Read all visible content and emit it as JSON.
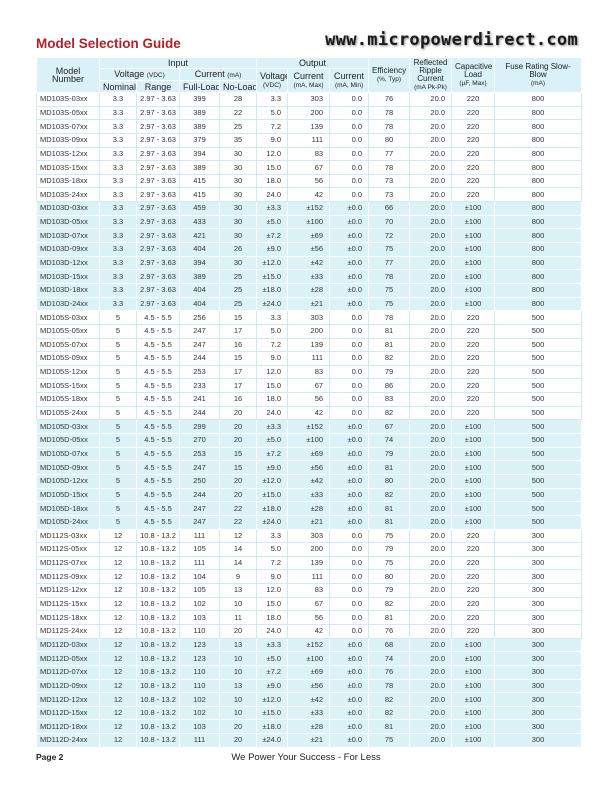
{
  "title": "Model Selection Guide",
  "url": "www.micropowerdirect.com",
  "headers": {
    "model": "Model Number",
    "input": "Input",
    "output": "Output",
    "voltage": "Voltage",
    "voltage_unit": "(VDC)",
    "current": "Current",
    "current_unit": "(mA)",
    "nominal": "Nominal",
    "range": "Range",
    "full_load": "Full-Load",
    "no_load": "No-Load",
    "out_voltage": "Voltage",
    "out_voltage_unit": "(VDC)",
    "out_current_max": "Current",
    "out_current_max_unit": "(mA, Max)",
    "out_current_min": "Current",
    "out_current_min_unit": "(mA, Min)",
    "efficiency": "Efficiency",
    "efficiency_unit": "(%, Typ)",
    "ripple": "Reflected Ripple Current",
    "ripple_unit": "(mA Pk-Pk)",
    "cap_load": "Capacitive Load",
    "cap_load_unit": "(µF, Max)",
    "fuse": "Fuse Rating Slow-Blow",
    "fuse_unit": "(mA)"
  },
  "rows": [
    [
      "MD103S-03xx",
      "3.3",
      "2.97 - 3.63",
      "399",
      "28",
      "3.3",
      "303",
      "0.0",
      "76",
      "20.0",
      "220",
      "800"
    ],
    [
      "MD103S-05xx",
      "3.3",
      "2.97 - 3.63",
      "389",
      "22",
      "5.0",
      "200",
      "0.0",
      "78",
      "20.0",
      "220",
      "800"
    ],
    [
      "MD103S-07xx",
      "3.3",
      "2.97 - 3.63",
      "389",
      "25",
      "7.2",
      "139",
      "0.0",
      "78",
      "20.0",
      "220",
      "800"
    ],
    [
      "MD103S-09xx",
      "3.3",
      "2.97 - 3.63",
      "379",
      "35",
      "9.0",
      "111",
      "0.0",
      "80",
      "20.0",
      "220",
      "800"
    ],
    [
      "MD103S-12xx",
      "3.3",
      "2.97 - 3.63",
      "394",
      "30",
      "12.0",
      "83",
      "0.0",
      "77",
      "20.0",
      "220",
      "800"
    ],
    [
      "MD103S-15xx",
      "3.3",
      "2.97 - 3.63",
      "389",
      "30",
      "15.0",
      "67",
      "0.0",
      "78",
      "20.0",
      "220",
      "800"
    ],
    [
      "MD103S-18xx",
      "3.3",
      "2.97 - 3.63",
      "415",
      "30",
      "18.0",
      "56",
      "0.0",
      "73",
      "20.0",
      "220",
      "800"
    ],
    [
      "MD103S-24xx",
      "3.3",
      "2.97 - 3.63",
      "415",
      "30",
      "24.0",
      "42",
      "0.0",
      "73",
      "20.0",
      "220",
      "800"
    ],
    [
      "MD103D-03xx",
      "3.3",
      "2.97 - 3.63",
      "459",
      "30",
      "±3.3",
      "±152",
      "±0.0",
      "66",
      "20.0",
      "±100",
      "800"
    ],
    [
      "MD103D-05xx",
      "3.3",
      "2.97 - 3.63",
      "433",
      "30",
      "±5.0",
      "±100",
      "±0.0",
      "70",
      "20.0",
      "±100",
      "800"
    ],
    [
      "MD103D-07xx",
      "3.3",
      "2.97 - 3.63",
      "421",
      "30",
      "±7.2",
      "±69",
      "±0.0",
      "72",
      "20.0",
      "±100",
      "800"
    ],
    [
      "MD103D-09xx",
      "3.3",
      "2.97 - 3.63",
      "404",
      "26",
      "±9.0",
      "±56",
      "±0.0",
      "75",
      "20.0",
      "±100",
      "800"
    ],
    [
      "MD103D-12xx",
      "3.3",
      "2.97 - 3.63",
      "394",
      "30",
      "±12.0",
      "±42",
      "±0.0",
      "77",
      "20.0",
      "±100",
      "800"
    ],
    [
      "MD103D-15xx",
      "3.3",
      "2.97 - 3.63",
      "389",
      "25",
      "±15.0",
      "±33",
      "±0.0",
      "78",
      "20.0",
      "±100",
      "800"
    ],
    [
      "MD103D-18xx",
      "3.3",
      "2.97 - 3.63",
      "404",
      "25",
      "±18.0",
      "±28",
      "±0.0",
      "75",
      "20.0",
      "±100",
      "800"
    ],
    [
      "MD103D-24xx",
      "3.3",
      "2.97 - 3.63",
      "404",
      "25",
      "±24.0",
      "±21",
      "±0.0",
      "75",
      "20.0",
      "±100",
      "800"
    ],
    [
      "MD105S-03xx",
      "5",
      "4.5 - 5.5",
      "256",
      "15",
      "3.3",
      "303",
      "0.0",
      "78",
      "20.0",
      "220",
      "500"
    ],
    [
      "MD105S-05xx",
      "5",
      "4.5 - 5.5",
      "247",
      "17",
      "5.0",
      "200",
      "0.0",
      "81",
      "20.0",
      "220",
      "500"
    ],
    [
      "MD105S-07xx",
      "5",
      "4.5 - 5.5",
      "247",
      "16",
      "7.2",
      "139",
      "0.0",
      "81",
      "20.0",
      "220",
      "500"
    ],
    [
      "MD105S-09xx",
      "5",
      "4.5 - 5.5",
      "244",
      "15",
      "9.0",
      "111",
      "0.0",
      "82",
      "20.0",
      "220",
      "500"
    ],
    [
      "MD105S-12xx",
      "5",
      "4.5 - 5.5",
      "253",
      "17",
      "12.0",
      "83",
      "0.0",
      "79",
      "20.0",
      "220",
      "500"
    ],
    [
      "MD105S-15xx",
      "5",
      "4.5 - 5.5",
      "233",
      "17",
      "15.0",
      "67",
      "0.0",
      "86",
      "20.0",
      "220",
      "500"
    ],
    [
      "MD105S-18xx",
      "5",
      "4.5 - 5.5",
      "241",
      "16",
      "18.0",
      "56",
      "0.0",
      "83",
      "20.0",
      "220",
      "500"
    ],
    [
      "MD105S-24xx",
      "5",
      "4.5 - 5.5",
      "244",
      "20",
      "24.0",
      "42",
      "0.0",
      "82",
      "20.0",
      "220",
      "500"
    ],
    [
      "MD105D-03xx",
      "5",
      "4.5 - 5.5",
      "299",
      "20",
      "±3.3",
      "±152",
      "±0.0",
      "67",
      "20.0",
      "±100",
      "500"
    ],
    [
      "MD105D-05xx",
      "5",
      "4.5 - 5.5",
      "270",
      "20",
      "±5.0",
      "±100",
      "±0.0",
      "74",
      "20.0",
      "±100",
      "500"
    ],
    [
      "MD105D-07xx",
      "5",
      "4.5 - 5.5",
      "253",
      "15",
      "±7.2",
      "±69",
      "±0.0",
      "79",
      "20.0",
      "±100",
      "500"
    ],
    [
      "MD105D-09xx",
      "5",
      "4.5 - 5.5",
      "247",
      "15",
      "±9.0",
      "±56",
      "±0.0",
      "81",
      "20.0",
      "±100",
      "500"
    ],
    [
      "MD105D-12xx",
      "5",
      "4.5 - 5.5",
      "250",
      "20",
      "±12.0",
      "±42",
      "±0.0",
      "80",
      "20.0",
      "±100",
      "500"
    ],
    [
      "MD105D-15xx",
      "5",
      "4.5 - 5.5",
      "244",
      "20",
      "±15.0",
      "±33",
      "±0.0",
      "82",
      "20.0",
      "±100",
      "500"
    ],
    [
      "MD105D-18xx",
      "5",
      "4.5 - 5.5",
      "247",
      "22",
      "±18.0",
      "±28",
      "±0.0",
      "81",
      "20.0",
      "±100",
      "500"
    ],
    [
      "MD105D-24xx",
      "5",
      "4.5 - 5.5",
      "247",
      "22",
      "±24.0",
      "±21",
      "±0.0",
      "81",
      "20.0",
      "±100",
      "500"
    ],
    [
      "MD112S-03xx",
      "12",
      "10.8 - 13.2",
      "111",
      "12",
      "3.3",
      "303",
      "0.0",
      "75",
      "20.0",
      "220",
      "300"
    ],
    [
      "MD112S-05xx",
      "12",
      "10.8 - 13.2",
      "105",
      "14",
      "5.0",
      "200",
      "0.0",
      "79",
      "20.0",
      "220",
      "300"
    ],
    [
      "MD112S-07xx",
      "12",
      "10.8 - 13.2",
      "111",
      "14",
      "7.2",
      "139",
      "0.0",
      "75",
      "20.0",
      "220",
      "300"
    ],
    [
      "MD112S-09xx",
      "12",
      "10.8 - 13.2",
      "104",
      "9",
      "9.0",
      "111",
      "0.0",
      "80",
      "20.0",
      "220",
      "300"
    ],
    [
      "MD112S-12xx",
      "12",
      "10.8 - 13.2",
      "105",
      "13",
      "12.0",
      "83",
      "0.0",
      "79",
      "20.0",
      "220",
      "300"
    ],
    [
      "MD112S-15xx",
      "12",
      "10.8 - 13.2",
      "102",
      "10",
      "15.0",
      "67",
      "0.0",
      "82",
      "20.0",
      "220",
      "300"
    ],
    [
      "MD112S-18xx",
      "12",
      "10.8 - 13.2",
      "103",
      "11",
      "18.0",
      "56",
      "0.0",
      "81",
      "20.0",
      "220",
      "300"
    ],
    [
      "MD112S-24xx",
      "12",
      "10.8 - 13.2",
      "110",
      "20",
      "24.0",
      "42",
      "0.0",
      "76",
      "20.0",
      "220",
      "300"
    ],
    [
      "MD112D-03xx",
      "12",
      "10.8 - 13.2",
      "123",
      "13",
      "±3.3",
      "±152",
      "±0.0",
      "68",
      "20.0",
      "±100",
      "300"
    ],
    [
      "MD112D-05xx",
      "12",
      "10.8 - 13.2",
      "123",
      "10",
      "±5.0",
      "±100",
      "±0.0",
      "74",
      "20.0",
      "±100",
      "300"
    ],
    [
      "MD112D-07xx",
      "12",
      "10.8 - 13.2",
      "110",
      "10",
      "±7.2",
      "±69",
      "±0.0",
      "76",
      "20.0",
      "±100",
      "300"
    ],
    [
      "MD112D-09xx",
      "12",
      "10.8 - 13.2",
      "110",
      "13",
      "±9.0",
      "±56",
      "±0.0",
      "78",
      "20.0",
      "±100",
      "300"
    ],
    [
      "MD112D-12xx",
      "12",
      "10.8 - 13.2",
      "102",
      "10",
      "±12.0",
      "±42",
      "±0.0",
      "82",
      "20.0",
      "±100",
      "300"
    ],
    [
      "MD112D-15xx",
      "12",
      "10.8 - 13.2",
      "102",
      "10",
      "±15.0",
      "±33",
      "±0.0",
      "82",
      "20.0",
      "±100",
      "300"
    ],
    [
      "MD112D-18xx",
      "12",
      "10.8 - 13.2",
      "103",
      "20",
      "±18.0",
      "±28",
      "±0.0",
      "81",
      "20.0",
      "±100",
      "300"
    ],
    [
      "MD112D-24xx",
      "12",
      "10.8 - 13.2",
      "111",
      "20",
      "±24.0",
      "±21",
      "±0.0",
      "75",
      "20.0",
      "±100",
      "300"
    ]
  ],
  "footer": {
    "page": "Page  2",
    "slogan": "We Power Your Success - For Less"
  }
}
